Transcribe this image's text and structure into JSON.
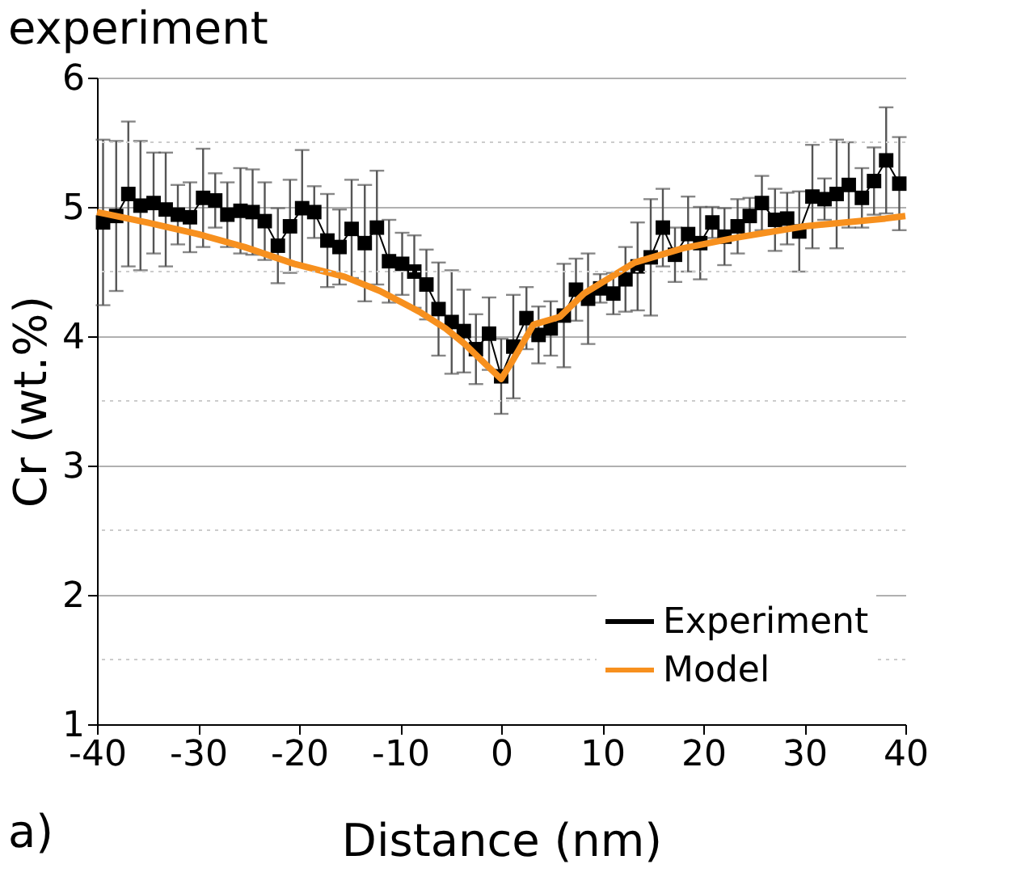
{
  "chart_data": {
    "type": "line",
    "title": "experiment",
    "xlabel": "Distance (nm)",
    "ylabel": "Cr (wt.%)",
    "annotations": [
      "a)"
    ],
    "xlim": [
      -40,
      40
    ],
    "xticks": [
      -40,
      -30,
      -20,
      -10,
      0,
      10,
      20,
      30,
      40
    ],
    "ylim": [
      1,
      6
    ],
    "yticks": [
      1,
      {
        "value": 1.5,
        "label": null
      },
      2,
      {
        "value": 2.5,
        "label": null
      },
      3,
      {
        "value": 3.5,
        "label": null
      },
      4,
      {
        "value": 4.5,
        "label": null
      },
      5,
      {
        "value": 5.5,
        "label": null
      },
      6
    ],
    "grid": "y",
    "legend": "bottom right",
    "series": [
      {
        "name": "Experiment",
        "color": "#000000",
        "marker": "square",
        "line_style": "solid",
        "x": [
          -39.4,
          -38.1,
          -36.9,
          -35.7,
          -34.4,
          -33.2,
          -32.0,
          -30.8,
          -29.5,
          -28.3,
          -27.1,
          -25.8,
          -24.6,
          -23.4,
          -22.1,
          -20.9,
          -19.7,
          -18.5,
          -17.2,
          -16.0,
          -14.8,
          -13.5,
          -12.3,
          -11.1,
          -9.8,
          -8.6,
          -7.4,
          -6.2,
          -4.9,
          -3.7,
          -2.5,
          -1.2,
          0,
          1.2,
          2.5,
          3.7,
          4.9,
          6.2,
          7.4,
          8.6,
          9.8,
          11.1,
          12.3,
          13.5,
          14.8,
          16.0,
          17.2,
          18.5,
          19.7,
          20.9,
          22.1,
          23.4,
          24.6,
          25.8,
          27.1,
          28.3,
          29.5,
          30.8,
          32.0,
          33.2,
          34.4,
          35.7,
          36.9,
          38.1,
          39.4
        ],
        "values": [
          4.88,
          4.93,
          5.1,
          5.01,
          5.03,
          4.98,
          4.94,
          4.92,
          5.07,
          5.05,
          4.94,
          4.97,
          4.96,
          4.89,
          4.7,
          4.85,
          4.99,
          4.96,
          4.74,
          4.69,
          4.83,
          4.72,
          4.84,
          4.58,
          4.56,
          4.5,
          4.4,
          4.21,
          4.11,
          4.04,
          3.9,
          4.02,
          3.69,
          3.92,
          4.14,
          4.01,
          4.06,
          4.16,
          4.36,
          4.29,
          4.37,
          4.33,
          4.44,
          4.54,
          4.61,
          4.84,
          4.63,
          4.79,
          4.72,
          4.88,
          4.77,
          4.85,
          4.93,
          5.03,
          4.9,
          4.91,
          4.81,
          5.08,
          5.06,
          5.1,
          5.17,
          5.07,
          5.2,
          5.36,
          5.18
        ],
        "errors": [
          0.64,
          0.58,
          0.56,
          0.5,
          0.39,
          0.44,
          0.23,
          0.27,
          0.38,
          0.21,
          0.25,
          0.33,
          0.33,
          0.3,
          0.29,
          0.36,
          0.45,
          0.2,
          0.36,
          0.29,
          0.38,
          0.45,
          0.44,
          0.32,
          0.24,
          0.28,
          0.27,
          0.36,
          0.4,
          0.32,
          0.27,
          0.28,
          0.29,
          0.4,
          0.24,
          0.22,
          0.21,
          0.4,
          0.24,
          0.35,
          0.11,
          0.16,
          0.25,
          0.34,
          0.45,
          0.3,
          0.21,
          0.29,
          0.28,
          0.12,
          0.22,
          0.21,
          0.14,
          0.21,
          0.24,
          0.2,
          0.31,
          0.4,
          0.16,
          0.42,
          0.33,
          0.23,
          0.26,
          0.41,
          0.36
        ]
      },
      {
        "name": "Model",
        "color": "#f7901e",
        "marker": "none",
        "line_style": "solid",
        "x": [
          -40,
          -35.1,
          -30,
          -25.4,
          -20.5,
          -15.5,
          -12,
          -8.1,
          -5.5,
          -3.6,
          -1.5,
          0,
          1.2,
          3.2,
          5.8,
          8.2,
          13.2,
          18,
          23.1,
          30,
          38,
          40
        ],
        "values": [
          4.96,
          4.88,
          4.79,
          4.69,
          4.56,
          4.46,
          4.35,
          4.19,
          4.06,
          3.94,
          3.78,
          3.67,
          3.82,
          4.09,
          4.15,
          4.33,
          4.57,
          4.68,
          4.76,
          4.85,
          4.91,
          4.93
        ]
      }
    ]
  }
}
